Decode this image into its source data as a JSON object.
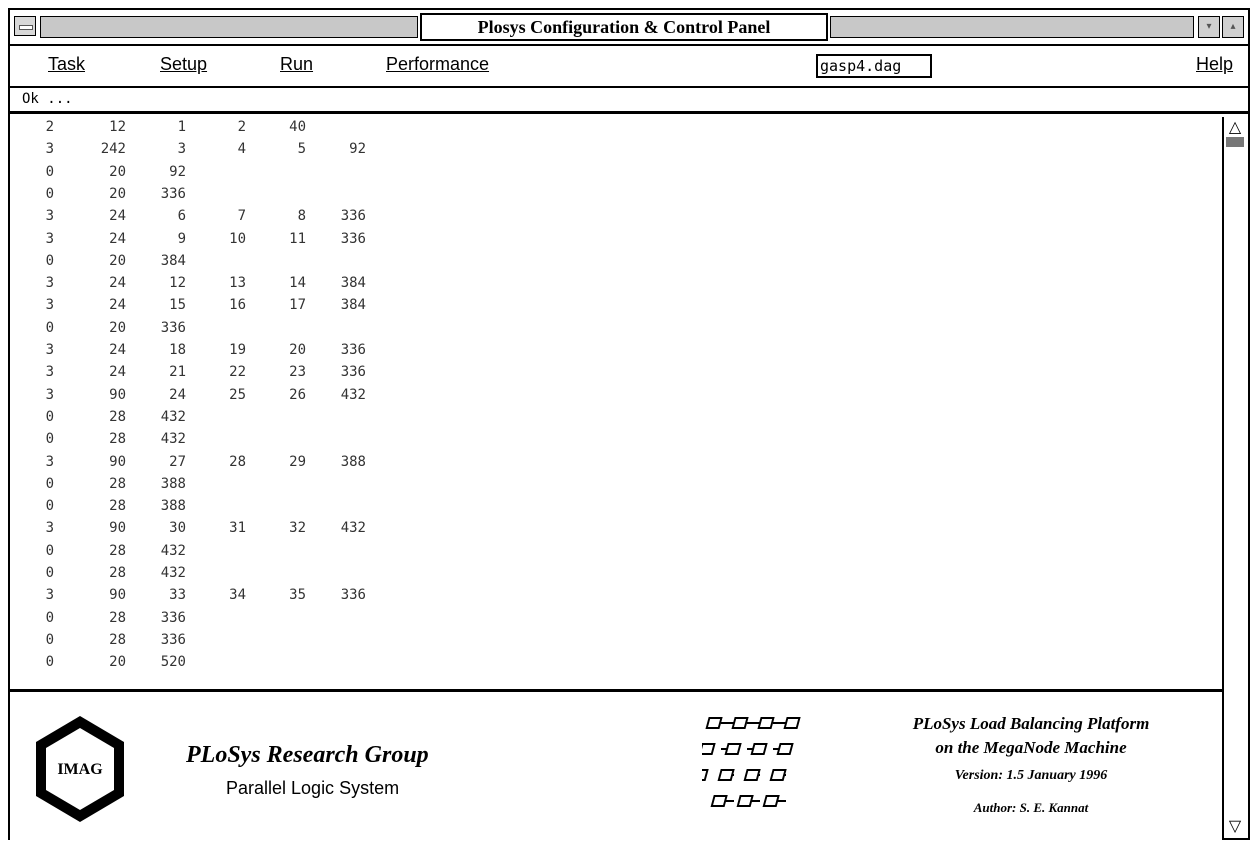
{
  "window": {
    "title": "Plosys Configuration & Control Panel"
  },
  "menubar": {
    "items": [
      {
        "label": "Task"
      },
      {
        "label": "Setup"
      },
      {
        "label": "Run"
      },
      {
        "label": "Performance"
      }
    ],
    "file_field": "gasp4.dag",
    "help": "Help"
  },
  "status": {
    "text": "Ok ..."
  },
  "data_rows": [
    [
      "2",
      "12",
      "1",
      "2",
      "40",
      ""
    ],
    [
      "3",
      "242",
      "3",
      "4",
      "5",
      "92"
    ],
    [
      "0",
      "20",
      "92",
      "",
      "",
      ""
    ],
    [
      "0",
      "20",
      "336",
      "",
      "",
      ""
    ],
    [
      "3",
      "24",
      "6",
      "7",
      "8",
      "336"
    ],
    [
      "3",
      "24",
      "9",
      "10",
      "11",
      "336"
    ],
    [
      "0",
      "20",
      "384",
      "",
      "",
      ""
    ],
    [
      "3",
      "24",
      "12",
      "13",
      "14",
      "384"
    ],
    [
      "3",
      "24",
      "15",
      "16",
      "17",
      "384"
    ],
    [
      "0",
      "20",
      "336",
      "",
      "",
      ""
    ],
    [
      "3",
      "24",
      "18",
      "19",
      "20",
      "336"
    ],
    [
      "3",
      "24",
      "21",
      "22",
      "23",
      "336"
    ],
    [
      "3",
      "90",
      "24",
      "25",
      "26",
      "432"
    ],
    [
      "0",
      "28",
      "432",
      "",
      "",
      ""
    ],
    [
      "0",
      "28",
      "432",
      "",
      "",
      ""
    ],
    [
      "3",
      "90",
      "27",
      "28",
      "29",
      "388"
    ],
    [
      "0",
      "28",
      "388",
      "",
      "",
      ""
    ],
    [
      "0",
      "28",
      "388",
      "",
      "",
      ""
    ],
    [
      "3",
      "90",
      "30",
      "31",
      "32",
      "432"
    ],
    [
      "0",
      "28",
      "432",
      "",
      "",
      ""
    ],
    [
      "0",
      "28",
      "432",
      "",
      "",
      ""
    ],
    [
      "3",
      "90",
      "33",
      "34",
      "35",
      "336"
    ],
    [
      "0",
      "28",
      "336",
      "",
      "",
      ""
    ],
    [
      "0",
      "28",
      "336",
      "",
      "",
      ""
    ],
    [
      "0",
      "20",
      "520",
      "",
      "",
      ""
    ]
  ],
  "footer": {
    "logo_text": "IMAG",
    "group_title": "PLoSys Research Group",
    "group_subtitle": "Parallel Logic System",
    "platform_line1": "PLoSys Load Balancing Platform",
    "platform_line2": "on the MegaNode Machine",
    "version": "Version: 1.5   January 1996",
    "author": "Author: S. E. Kannat"
  }
}
